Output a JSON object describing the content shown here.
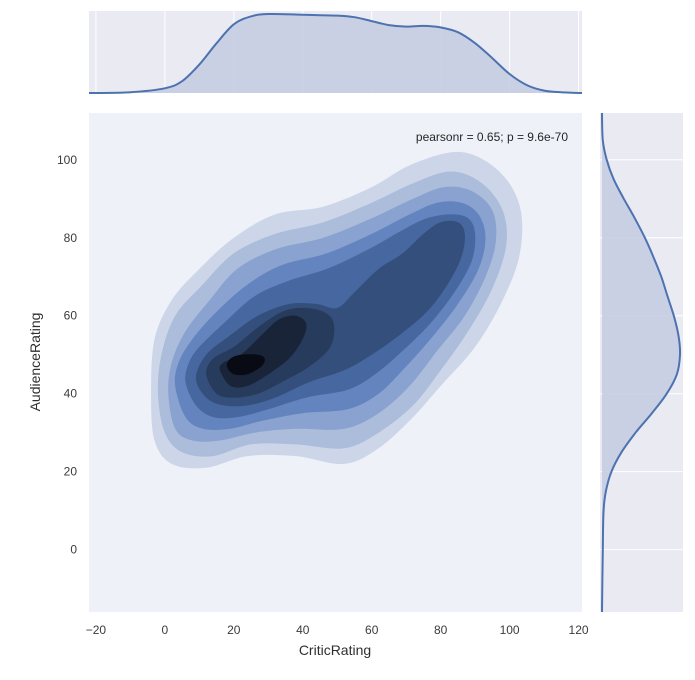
{
  "chart_data": {
    "type": "kde_jointplot",
    "title": "",
    "xlabel": "CriticRating",
    "ylabel": "AudienceRating",
    "xlim": [
      -22,
      121
    ],
    "ylim": [
      -16,
      112
    ],
    "xticks": [
      -20,
      0,
      20,
      40,
      60,
      80,
      100,
      120
    ],
    "yticks": [
      0,
      20,
      40,
      60,
      80,
      100
    ],
    "annotation": "pearsonr = 0.65; p = 9.6e-70",
    "grid": true,
    "colors": {
      "axes_bg": "#EEF1F8",
      "marginal_bg": "#EAEAF2",
      "grid": "#FFFFFF",
      "line": "#4C72B0",
      "fill": "#C3CBE2",
      "levels": [
        "#CDD6E8",
        "#ACBCDB",
        "#8AA2CF",
        "#6384BE",
        "#46679F",
        "#344F7C",
        "#273B5C",
        "#1A2439",
        "#080B13"
      ]
    },
    "contour_levels": [
      {
        "level": 1,
        "points": [
          [
            -4,
            40
          ],
          [
            -3,
            28
          ],
          [
            2,
            22
          ],
          [
            12,
            21
          ],
          [
            24,
            24
          ],
          [
            38,
            24
          ],
          [
            52,
            22
          ],
          [
            62,
            26
          ],
          [
            72,
            34
          ],
          [
            80,
            42
          ],
          [
            90,
            52
          ],
          [
            98,
            64
          ],
          [
            103,
            76
          ],
          [
            103,
            88
          ],
          [
            97,
            97
          ],
          [
            86,
            102
          ],
          [
            72,
            99
          ],
          [
            60,
            93
          ],
          [
            46,
            88
          ],
          [
            32,
            86
          ],
          [
            20,
            80
          ],
          [
            10,
            72
          ],
          [
            2,
            64
          ],
          [
            -3,
            54
          ]
        ]
      },
      {
        "level": 2,
        "points": [
          [
            -2,
            40
          ],
          [
            0,
            30
          ],
          [
            5,
            25
          ],
          [
            14,
            24
          ],
          [
            25,
            27
          ],
          [
            38,
            27
          ],
          [
            52,
            26
          ],
          [
            62,
            30
          ],
          [
            72,
            37
          ],
          [
            80,
            46
          ],
          [
            88,
            56
          ],
          [
            95,
            67
          ],
          [
            99,
            78
          ],
          [
            98,
            87
          ],
          [
            92,
            94
          ],
          [
            83,
            97
          ],
          [
            72,
            94
          ],
          [
            60,
            89
          ],
          [
            46,
            84
          ],
          [
            32,
            81
          ],
          [
            20,
            76
          ],
          [
            11,
            68
          ],
          [
            3,
            60
          ],
          [
            -1,
            50
          ]
        ]
      },
      {
        "level": 3,
        "points": [
          [
            1,
            40
          ],
          [
            3,
            31
          ],
          [
            8,
            28
          ],
          [
            16,
            28
          ],
          [
            26,
            30
          ],
          [
            38,
            31
          ],
          [
            52,
            31
          ],
          [
            62,
            35
          ],
          [
            71,
            42
          ],
          [
            79,
            51
          ],
          [
            87,
            60
          ],
          [
            93,
            70
          ],
          [
            96,
            79
          ],
          [
            95,
            87
          ],
          [
            89,
            92
          ],
          [
            81,
            93
          ],
          [
            72,
            90
          ],
          [
            60,
            85
          ],
          [
            46,
            80
          ],
          [
            32,
            77
          ],
          [
            21,
            72
          ],
          [
            13,
            64
          ],
          [
            6,
            56
          ],
          [
            2,
            48
          ]
        ]
      },
      {
        "level": 4,
        "points": [
          [
            3,
            42
          ],
          [
            6,
            34
          ],
          [
            11,
            31
          ],
          [
            19,
            31
          ],
          [
            28,
            33
          ],
          [
            40,
            35
          ],
          [
            53,
            36
          ],
          [
            62,
            40
          ],
          [
            70,
            47
          ],
          [
            78,
            55
          ],
          [
            85,
            63
          ],
          [
            91,
            72
          ],
          [
            93,
            80
          ],
          [
            91,
            86
          ],
          [
            86,
            89
          ],
          [
            79,
            89
          ],
          [
            71,
            86
          ],
          [
            60,
            81
          ],
          [
            47,
            76
          ],
          [
            34,
            73
          ],
          [
            24,
            68
          ],
          [
            15,
            61
          ],
          [
            8,
            54
          ],
          [
            4,
            48
          ]
        ]
      },
      {
        "level": 5,
        "points": [
          [
            6,
            43
          ],
          [
            9,
            37
          ],
          [
            14,
            34
          ],
          [
            21,
            34
          ],
          [
            30,
            36
          ],
          [
            41,
            39
          ],
          [
            53,
            41
          ],
          [
            61,
            45
          ],
          [
            69,
            51
          ],
          [
            77,
            58
          ],
          [
            84,
            66
          ],
          [
            89,
            74
          ],
          [
            90,
            81
          ],
          [
            88,
            85
          ],
          [
            83,
            86
          ],
          [
            76,
            85
          ],
          [
            69,
            82
          ],
          [
            59,
            77
          ],
          [
            47,
            72
          ],
          [
            36,
            69
          ],
          [
            26,
            65
          ],
          [
            17,
            58
          ],
          [
            10,
            52
          ],
          [
            7,
            48
          ]
        ]
      },
      {
        "level": 6,
        "points": [
          [
            9,
            44
          ],
          [
            12,
            39
          ],
          [
            17,
            37
          ],
          [
            24,
            37
          ],
          [
            32,
            39
          ],
          [
            42,
            43
          ],
          [
            52,
            46
          ],
          [
            60,
            50
          ],
          [
            68,
            55
          ],
          [
            76,
            61
          ],
          [
            82,
            68
          ],
          [
            86,
            75
          ],
          [
            87,
            81
          ],
          [
            85,
            84
          ],
          [
            80,
            84
          ],
          [
            75,
            81
          ],
          [
            69,
            76
          ],
          [
            62,
            72
          ],
          [
            55,
            66
          ],
          [
            50,
            62
          ],
          [
            44,
            63
          ],
          [
            36,
            63
          ],
          [
            27,
            60
          ],
          [
            19,
            55
          ],
          [
            12,
            50
          ]
        ]
      },
      {
        "level": 7,
        "points": [
          [
            12,
            45
          ],
          [
            15,
            40
          ],
          [
            20,
            39
          ],
          [
            27,
            40
          ],
          [
            34,
            43
          ],
          [
            42,
            47
          ],
          [
            48,
            52
          ],
          [
            49,
            58
          ],
          [
            46,
            61
          ],
          [
            40,
            62
          ],
          [
            34,
            61
          ],
          [
            27,
            57
          ],
          [
            20,
            52
          ],
          [
            14,
            49
          ]
        ]
      },
      {
        "level": 8,
        "points": [
          [
            16,
            46
          ],
          [
            19,
            42
          ],
          [
            24,
            42
          ],
          [
            30,
            45
          ],
          [
            36,
            49
          ],
          [
            40,
            54
          ],
          [
            41,
            58
          ],
          [
            38,
            60
          ],
          [
            33,
            59
          ],
          [
            28,
            55
          ],
          [
            22,
            50
          ],
          [
            17,
            48
          ]
        ]
      },
      {
        "level": 9,
        "points": [
          [
            18,
            47
          ],
          [
            20,
            45
          ],
          [
            24,
            45
          ],
          [
            28,
            47
          ],
          [
            29,
            49
          ],
          [
            27,
            50
          ],
          [
            22,
            50
          ],
          [
            19,
            49
          ]
        ]
      }
    ],
    "marginal_x": {
      "type": "kde",
      "x": [
        -22,
        -10,
        0,
        5,
        10,
        15,
        20,
        25,
        30,
        40,
        50,
        55,
        60,
        65,
        70,
        75,
        80,
        85,
        90,
        95,
        100,
        105,
        110,
        115,
        121
      ],
      "density": [
        0.0,
        0.01,
        0.06,
        0.15,
        0.36,
        0.63,
        0.87,
        0.97,
        1.0,
        0.99,
        0.98,
        0.96,
        0.91,
        0.86,
        0.84,
        0.85,
        0.83,
        0.77,
        0.63,
        0.44,
        0.24,
        0.1,
        0.03,
        0.01,
        0.0
      ]
    },
    "marginal_y": {
      "type": "kde",
      "y": [
        -16,
        0,
        10,
        15,
        20,
        25,
        30,
        35,
        40,
        45,
        50,
        55,
        60,
        65,
        70,
        75,
        80,
        85,
        90,
        95,
        100,
        105,
        112
      ],
      "density": [
        0.0,
        0.01,
        0.02,
        0.05,
        0.12,
        0.25,
        0.43,
        0.64,
        0.83,
        0.96,
        1.0,
        0.98,
        0.92,
        0.84,
        0.76,
        0.66,
        0.55,
        0.42,
        0.28,
        0.15,
        0.06,
        0.01,
        0.0
      ]
    }
  }
}
